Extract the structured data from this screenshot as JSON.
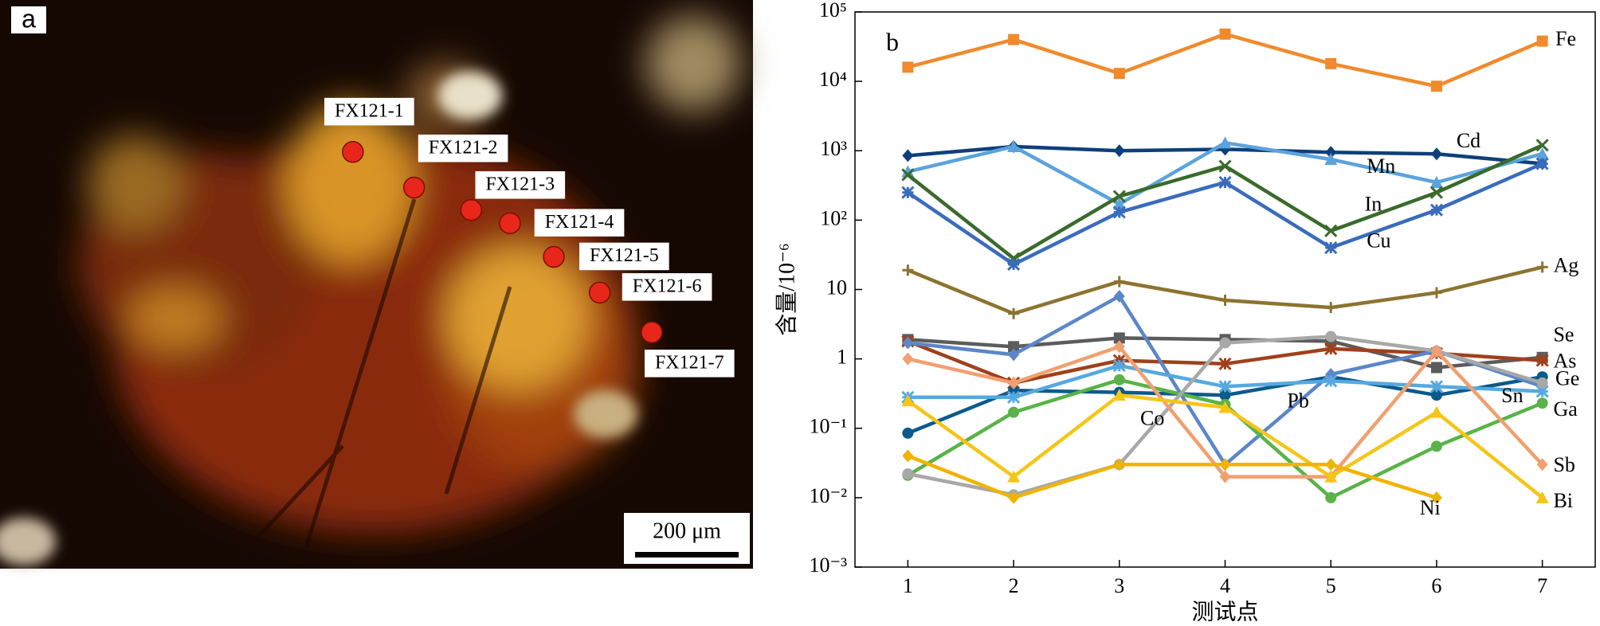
{
  "panel_a": {
    "label": "a",
    "points": [
      "FX121-1",
      "FX121-2",
      "FX121-3",
      "FX121-4",
      "FX121-5",
      "FX121-6",
      "FX121-7"
    ],
    "scale_bar": "200 μm"
  },
  "chart_data": {
    "type": "line",
    "panel_label": "b",
    "x_label": "测试点",
    "y_label": "含量/10⁻⁶",
    "x": [
      1,
      2,
      3,
      4,
      5,
      6,
      7
    ],
    "xlim": [
      0.5,
      7.5
    ],
    "xticks": [
      1,
      2,
      3,
      4,
      5,
      6,
      7
    ],
    "yscale": "log",
    "ylim": [
      0.001,
      100000
    ],
    "yticks": [
      {
        "value": 0.001,
        "label": "10⁻³"
      },
      {
        "value": 0.01,
        "label": "10⁻²"
      },
      {
        "value": 0.1,
        "label": "10⁻¹"
      },
      1,
      10,
      {
        "value": 100,
        "label": "10²"
      },
      {
        "value": 1000,
        "label": "10³"
      },
      {
        "value": 10000,
        "label": "10⁴"
      },
      {
        "value": 100000,
        "label": "10⁵"
      }
    ],
    "series": [
      {
        "name": "Fe",
        "color": "#f08a2c",
        "marker": "square",
        "values": [
          16000,
          40000,
          13000,
          48000,
          18000,
          8500,
          38000
        ]
      },
      {
        "name": "Cd",
        "color": "#0e3f7a",
        "marker": "diamond",
        "values": [
          850,
          1150,
          1000,
          1050,
          950,
          900,
          650
        ]
      },
      {
        "name": "Mn",
        "color": "#5ba3dc",
        "marker": "triangle",
        "values": [
          500,
          1150,
          170,
          1300,
          750,
          350,
          900
        ]
      },
      {
        "name": "In",
        "color": "#3a6a2c",
        "marker": "x",
        "values": [
          450,
          28,
          220,
          600,
          70,
          250,
          1200
        ]
      },
      {
        "name": "Cu",
        "color": "#3a6cbc",
        "marker": "asterisk",
        "values": [
          250,
          23,
          130,
          350,
          40,
          140,
          650
        ]
      },
      {
        "name": "Ag",
        "color": "#8c7430",
        "marker": "plus",
        "values": [
          19,
          4.5,
          13,
          7,
          5.5,
          9,
          21
        ]
      },
      {
        "name": "Se",
        "color": "#5c5c5c",
        "marker": "square",
        "values": [
          1.9,
          1.5,
          2,
          1.9,
          1.8,
          0.75,
          1.05
        ]
      },
      {
        "name": "As",
        "color": "#a0401c",
        "marker": "asterisk",
        "values": [
          1.8,
          0.45,
          0.95,
          0.85,
          1.4,
          1.2,
          0.95
        ]
      },
      {
        "name": "Ge",
        "color": "#0b5a8c",
        "marker": "circle",
        "values": [
          0.085,
          0.35,
          0.33,
          0.3,
          0.55,
          0.3,
          0.55
        ]
      },
      {
        "name": "Pb",
        "color": "#5b87c8",
        "marker": "diamond",
        "values": [
          1.7,
          1.15,
          8,
          0.03,
          0.6,
          1.3,
          0.4
        ]
      },
      {
        "name": "Sn",
        "color": "#56a9e0",
        "marker": "asterisk",
        "values": [
          0.28,
          0.28,
          0.8,
          0.4,
          0.48,
          0.4,
          0.34
        ]
      },
      {
        "name": "Ga",
        "color": "#59b348",
        "marker": "circle",
        "values": [
          0.021,
          0.17,
          0.5,
          0.22,
          0.01,
          0.055,
          0.23
        ]
      },
      {
        "name": "Co",
        "color": "#a8a8a8",
        "marker": "circle",
        "values": [
          0.022,
          0.011,
          0.03,
          1.7,
          2.1,
          1.3,
          0.45
        ]
      },
      {
        "name": "Sb",
        "color": "#f0a070",
        "marker": "diamond",
        "values": [
          1,
          0.45,
          1.5,
          0.02,
          0.02,
          1.3,
          0.03
        ]
      },
      {
        "name": "Bi",
        "color": "#f5c518",
        "marker": "triangle",
        "values": [
          0.25,
          0.02,
          0.3,
          0.2,
          0.02,
          0.17,
          0.01
        ]
      },
      {
        "name": "Ni",
        "color": "#f0b400",
        "marker": "diamond",
        "values": [
          0.04,
          0.01,
          0.03,
          0.03,
          0.03,
          0.01,
          null
        ]
      }
    ]
  }
}
